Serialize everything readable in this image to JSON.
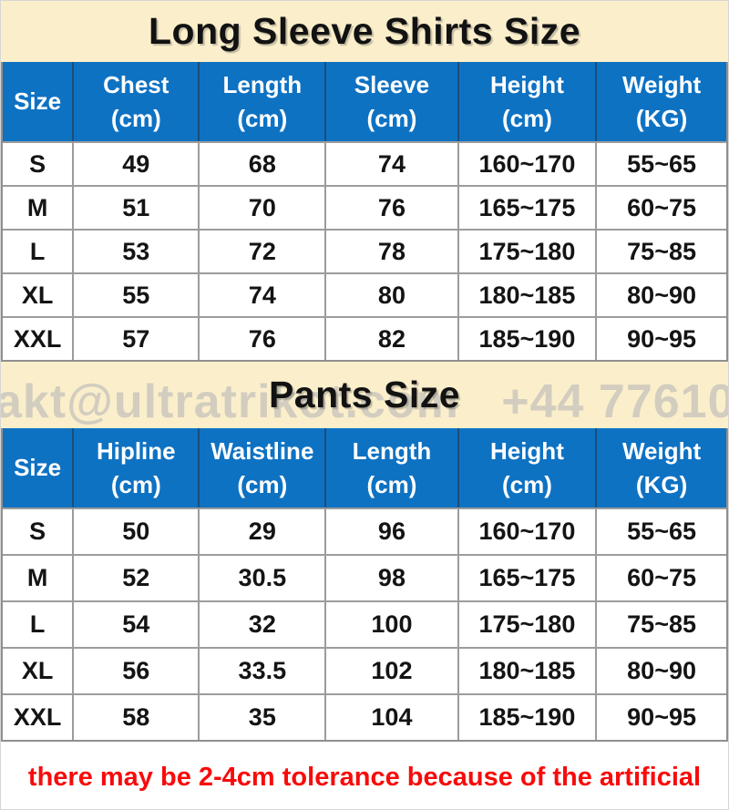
{
  "shirts": {
    "title": "Long Sleeve Shirts Size",
    "columns": [
      {
        "label": "Size",
        "unit": ""
      },
      {
        "label": "Chest",
        "unit": "(cm)"
      },
      {
        "label": "Length",
        "unit": "(cm)"
      },
      {
        "label": "Sleeve",
        "unit": "(cm)"
      },
      {
        "label": "Height",
        "unit": "(cm)"
      },
      {
        "label": "Weight",
        "unit": "(KG)"
      }
    ],
    "rows": [
      [
        "S",
        "49",
        "68",
        "74",
        "160~170",
        "55~65"
      ],
      [
        "M",
        "51",
        "70",
        "76",
        "165~175",
        "60~75"
      ],
      [
        "L",
        "53",
        "72",
        "78",
        "175~180",
        "75~85"
      ],
      [
        "XL",
        "55",
        "74",
        "80",
        "180~185",
        "80~90"
      ],
      [
        "XXL",
        "57",
        "76",
        "82",
        "185~190",
        "90~95"
      ]
    ]
  },
  "pants": {
    "title": "Pants Size",
    "columns": [
      {
        "label": "Size",
        "unit": ""
      },
      {
        "label": "Hipline",
        "unit": "(cm)"
      },
      {
        "label": "Waistline",
        "unit": "(cm)"
      },
      {
        "label": "Length",
        "unit": "(cm)"
      },
      {
        "label": "Height",
        "unit": "(cm)"
      },
      {
        "label": "Weight",
        "unit": "(KG)"
      }
    ],
    "rows": [
      [
        "S",
        "50",
        "29",
        "96",
        "160~170",
        "55~65"
      ],
      [
        "M",
        "52",
        "30.5",
        "98",
        "165~175",
        "60~75"
      ],
      [
        "L",
        "54",
        "32",
        "100",
        "175~180",
        "75~85"
      ],
      [
        "XL",
        "56",
        "33.5",
        "102",
        "180~185",
        "80~90"
      ],
      [
        "XXL",
        "58",
        "35",
        "104",
        "185~190",
        "90~95"
      ]
    ]
  },
  "watermark": {
    "text": "akt@ultratrikot.com   +44 77610"
  },
  "footer": {
    "note": "there may be 2-4cm tolerance because of the artificial"
  },
  "colors": {
    "band_bg": "#FBEFCB",
    "header_bg": "#0E72C3",
    "header_text": "#FFFFFF",
    "grid_line": "#9C9C9C",
    "header_divider": "#1A4D7C",
    "body_text": "#141414",
    "note_text": "#F80B0B",
    "watermark_text": "#B0B0B6"
  }
}
